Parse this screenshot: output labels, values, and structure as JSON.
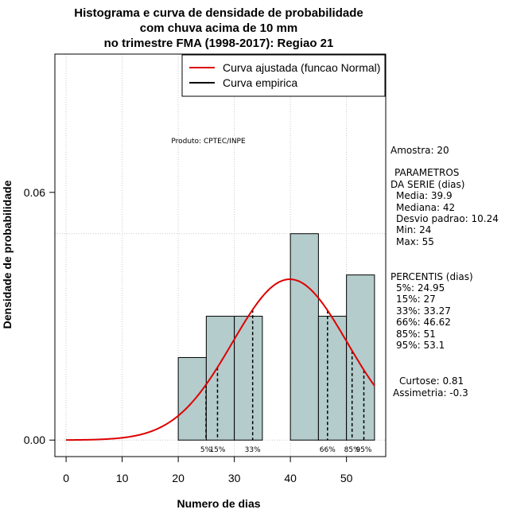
{
  "chart_data": {
    "type": "bar",
    "title_lines": [
      "Histograma e curva de densidade de probabilidade",
      "com chuva acima de 10 mm",
      "no trimestre FMA (1998-2017): Regiao 21"
    ],
    "xlabel": "Numero de dias",
    "ylabel": "Densidade de probabilidade",
    "xlim": [
      -2,
      57
    ],
    "ylim": [
      -0.004,
      0.0935
    ],
    "x_ticks": [
      0,
      10,
      20,
      30,
      40,
      50
    ],
    "x_tick_labels": [
      "0",
      "10",
      "20",
      "30",
      "40",
      "50"
    ],
    "y_ticks": [
      0.0,
      0.06
    ],
    "y_tick_labels": [
      "0.00",
      "0.06"
    ],
    "grid": true,
    "bins": [
      {
        "x0": 20,
        "x1": 25,
        "density": 0.02
      },
      {
        "x0": 25,
        "x1": 30,
        "density": 0.03
      },
      {
        "x0": 30,
        "x1": 35,
        "density": 0.03
      },
      {
        "x0": 35,
        "x1": 40,
        "density": 0.0
      },
      {
        "x0": 40,
        "x1": 45,
        "density": 0.05
      },
      {
        "x0": 45,
        "x1": 50,
        "density": 0.03
      },
      {
        "x0": 50,
        "x1": 55,
        "density": 0.04
      }
    ],
    "bar_color": "#b4cccc",
    "normal_curve": {
      "name": "Curva ajustada (funcao Normal)",
      "mean": 39.9,
      "sd": 10.24,
      "color": "#dd0000",
      "x_from": 0,
      "x_to": 55
    },
    "empirical_curve": {
      "name": "Curva empirica",
      "color": "#000000"
    },
    "legend_position": "top-right",
    "percentiles": [
      {
        "label": "5%",
        "value": 24.95
      },
      {
        "label": "15%",
        "value": 27
      },
      {
        "label": "33%",
        "value": 33.27
      },
      {
        "label": "66%",
        "value": 46.62
      },
      {
        "label": "85%",
        "value": 51
      },
      {
        "label": "95%",
        "value": 53.1
      }
    ],
    "annotation": "Produto: CPTEC/INPE"
  },
  "side_panel": {
    "amostra": "Amostra: 20",
    "param_title_1": "PARAMETROS",
    "param_title_2": "DA SERIE (dias)",
    "media": "Media: 39.9",
    "mediana": "Mediana: 42",
    "desvio": "Desvio padrao: 10.24",
    "min": "Min: 24",
    "max": "Max: 55",
    "percentis_title": "PERCENTIS (dias)",
    "p5": "5%: 24.95",
    "p15": "15%: 27",
    "p33": "33%: 33.27",
    "p66": "66%: 46.62",
    "p85": "85%: 51",
    "p95": "95%: 53.1",
    "curtose": "Curtose: 0.81",
    "assimetria": "Assimetria: -0.3"
  }
}
